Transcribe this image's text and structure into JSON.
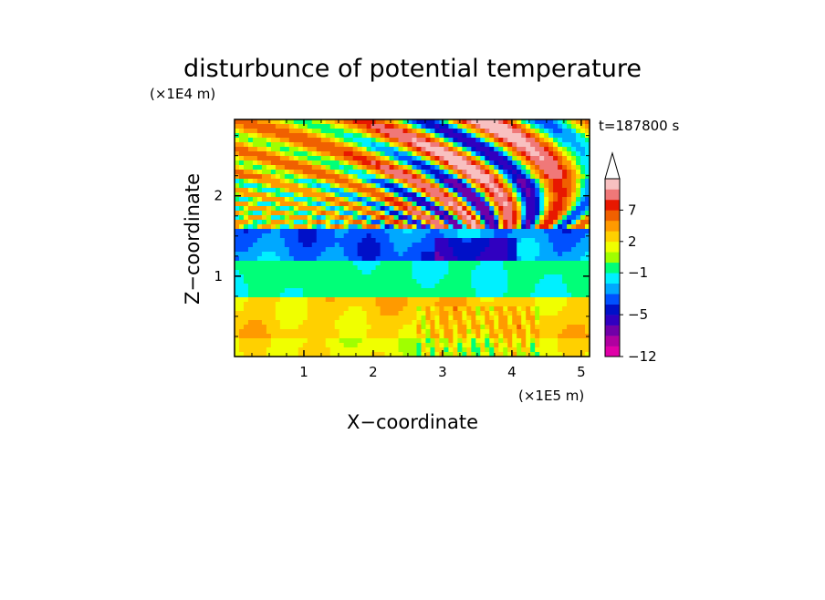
{
  "chart_data": {
    "type": "heatmap",
    "title": "disturbunce of potential temperature",
    "xlabel": "X−coordinate",
    "ylabel": "Z−coordinate",
    "x_unit": "(×1E5 m)",
    "y_unit": "(×1E4 m)",
    "time_label": "t=187800 s",
    "xlim": [
      0,
      5.12
    ],
    "ylim": [
      0,
      2.95
    ],
    "x_ticks": [
      1,
      2,
      3,
      4,
      5
    ],
    "x_tick_labels": [
      "1",
      "2",
      "3",
      "4",
      "5"
    ],
    "y_ticks": [
      1,
      2
    ],
    "y_tick_labels": [
      "1",
      "2"
    ],
    "grid": false,
    "colorbar": {
      "position": "right",
      "levels": [
        -12,
        -10,
        -8,
        -6,
        -5,
        -4,
        -3,
        -2,
        -1,
        0,
        1,
        2,
        3,
        5,
        7,
        8,
        10
      ],
      "colors": [
        "#e000a8",
        "#b000a0",
        "#7000a8",
        "#3000c0",
        "#0010c8",
        "#0050ff",
        "#00a8ff",
        "#00f0ff",
        "#00ff78",
        "#a0ff00",
        "#f0ff00",
        "#ffd000",
        "#ff9a00",
        "#f06000",
        "#e81800",
        "#f07878",
        "#f8c0c0"
      ],
      "tick_values": [
        -12,
        -5,
        -1,
        2,
        7
      ],
      "tick_labels": [
        "−12",
        "−5",
        "−1",
        "2",
        "7"
      ],
      "overflow": "upper-triangle"
    },
    "bands": [
      {
        "z_range": [
          0.0,
          0.2
        ],
        "value": 1.5,
        "feature": "green-yellow speckled surface layer"
      },
      {
        "z_range": [
          0.2,
          0.75
        ],
        "value": 2.5,
        "feature": "warm yellow-orange layer"
      },
      {
        "z_range": [
          0.75,
          1.2
        ],
        "value": -0.8,
        "feature": "cyan cold layer"
      },
      {
        "z_range": [
          1.2,
          1.6
        ],
        "value": -3.0,
        "feature": "blue layer"
      },
      {
        "z_range": [
          1.6,
          2.2
        ],
        "value": 1.5,
        "feature": "mixed warm/cold layer"
      },
      {
        "z_range": [
          2.2,
          2.95
        ],
        "value": 3.0,
        "feature": "wave band fanning out from x≈3.5"
      }
    ]
  }
}
